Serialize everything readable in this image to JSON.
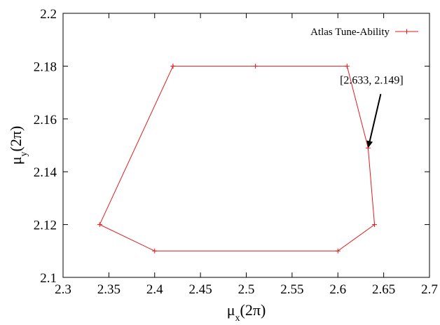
{
  "chart_data": {
    "type": "line",
    "xlabel": {
      "base": "μ",
      "sub": "x",
      "rest": "(2π)"
    },
    "ylabel": {
      "base": "μ",
      "sub": "y",
      "rest": "(2π)"
    },
    "xlim": [
      2.3,
      2.7
    ],
    "ylim": [
      2.1,
      2.2
    ],
    "xticks": [
      "2.3",
      "2.35",
      "2.4",
      "2.45",
      "2.5",
      "2.55",
      "2.6",
      "2.65",
      "2.7"
    ],
    "yticks": [
      "2.1",
      "2.12",
      "2.14",
      "2.16",
      "2.18",
      "2.2"
    ],
    "grid": false,
    "legend": "top-right",
    "series": [
      {
        "name": "Atlas Tune-Ability",
        "color": "#e41a1c",
        "marker": "plus",
        "x": [
          2.42,
          2.51,
          2.61,
          2.633,
          2.64,
          2.6,
          2.4,
          2.34,
          2.42
        ],
        "y": [
          2.18,
          2.18,
          2.18,
          2.149,
          2.12,
          2.11,
          2.11,
          2.12,
          2.18
        ]
      }
    ],
    "annotations": [
      {
        "text": "[2.633, 2.149]",
        "x": 2.633,
        "y": 2.149,
        "arrow": true
      }
    ]
  }
}
